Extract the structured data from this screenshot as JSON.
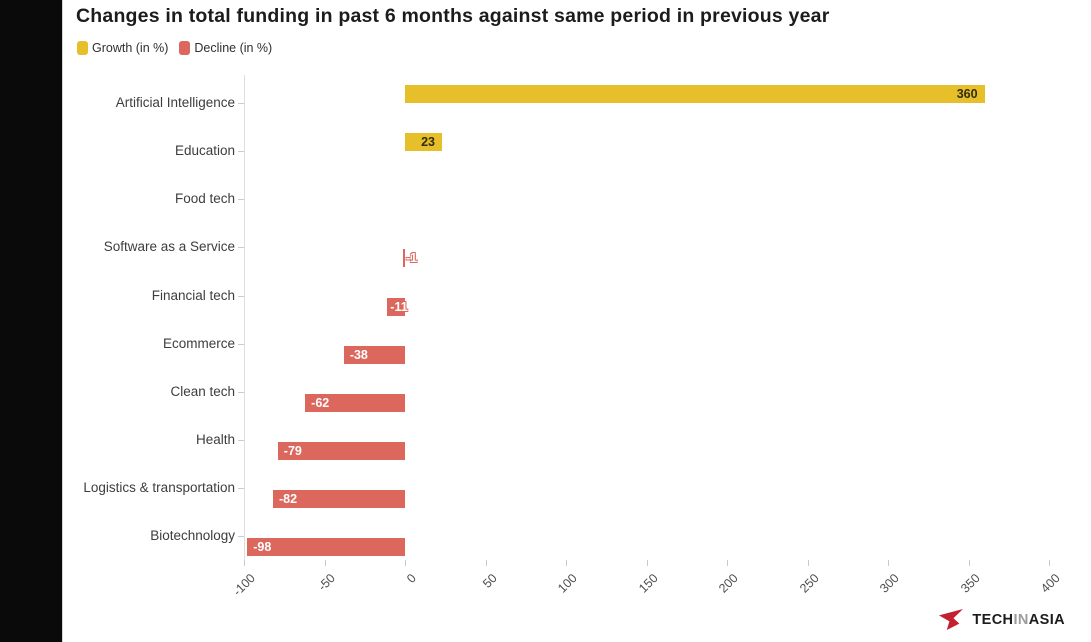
{
  "page": {
    "background": "#ffffff",
    "left_strip_color": "#0a0a0a"
  },
  "chart_data": {
    "type": "bar",
    "orientation": "horizontal",
    "title": "Changes in total funding in past 6 months against same period in previous year",
    "categories": [
      "Artificial Intelligence",
      "Education",
      "Food tech",
      "Software as a Service",
      "Financial tech",
      "Ecommerce",
      "Clean tech",
      "Health",
      "Logistics & transportation",
      "Biotechnology"
    ],
    "series": [
      {
        "name": "Growth (in %)",
        "color": "#e7bf2b",
        "values": [
          360,
          23,
          null,
          null,
          null,
          null,
          null,
          null,
          null,
          null
        ]
      },
      {
        "name": "Decline (in %)",
        "color": "#db675d",
        "values": [
          null,
          null,
          null,
          -1,
          -11,
          -38,
          -62,
          -79,
          -82,
          -98
        ]
      }
    ],
    "xlim": [
      -100,
      420
    ],
    "xticks": [
      -100,
      -50,
      0,
      50,
      100,
      150,
      200,
      250,
      300,
      350,
      400
    ],
    "grid": "none",
    "legend_position": "top-left",
    "value_labels": true,
    "ylabel": "",
    "xlabel": ""
  },
  "footer": {
    "logo": {
      "mark_color": "#c4202e",
      "text_part1": "TECH",
      "text_part2": "IN",
      "text_part3": "ASIA"
    }
  }
}
